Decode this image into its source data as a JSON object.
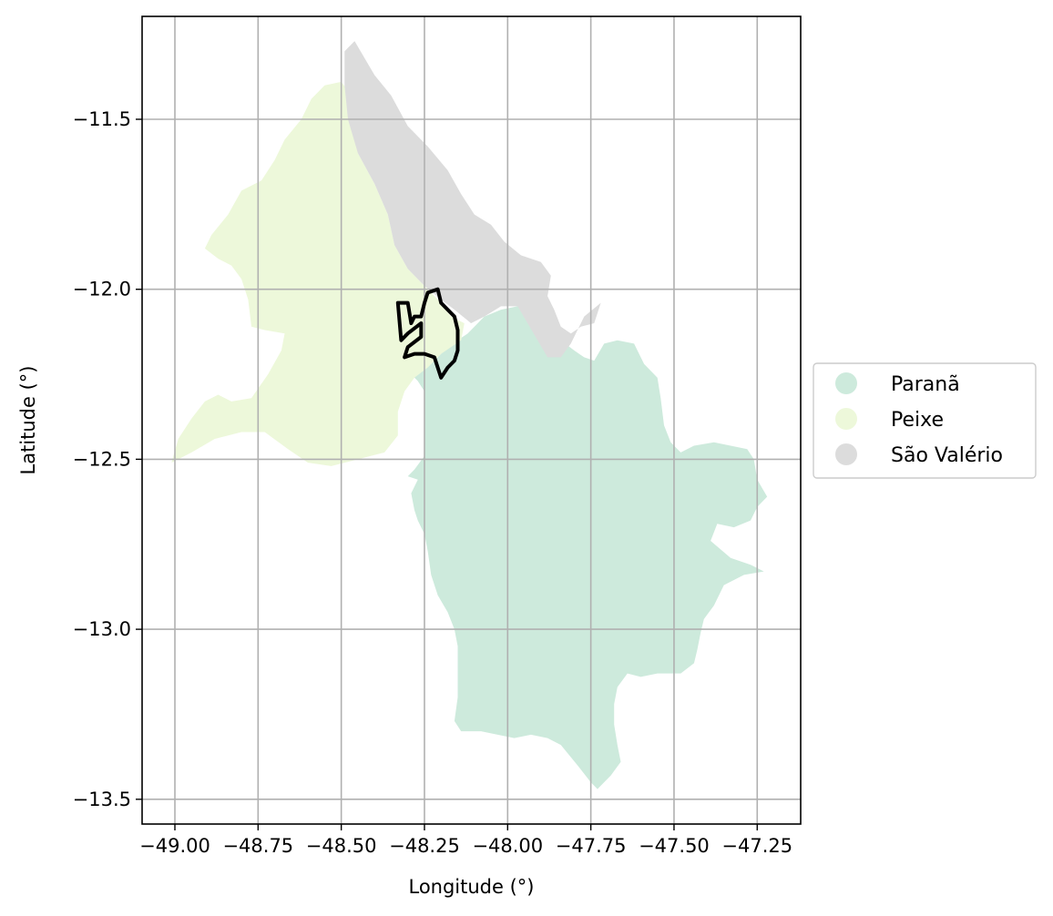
{
  "map": {
    "xlabel": "Longitude (°)",
    "ylabel": "Latitude (°)",
    "x_ticks": [
      {
        "value": -49.0,
        "label": "−49.00"
      },
      {
        "value": -48.75,
        "label": "−48.75"
      },
      {
        "value": -48.5,
        "label": "−48.50"
      },
      {
        "value": -48.25,
        "label": "−48.25"
      },
      {
        "value": -48.0,
        "label": "−48.00"
      },
      {
        "value": -47.75,
        "label": "−47.75"
      },
      {
        "value": -47.5,
        "label": "−47.50"
      },
      {
        "value": -47.25,
        "label": "−47.25"
      }
    ],
    "y_ticks": [
      {
        "value": -11.5,
        "label": "−11.5"
      },
      {
        "value": -12.0,
        "label": "−12.0"
      },
      {
        "value": -12.5,
        "label": "−12.5"
      },
      {
        "value": -13.0,
        "label": "−13.0"
      },
      {
        "value": -13.5,
        "label": "−13.5"
      }
    ],
    "xlim": [
      -49.1,
      -47.13
    ],
    "ylim": [
      -13.58,
      -11.2
    ],
    "grid": true,
    "legend_position": "right",
    "regions": [
      {
        "name": "Paranã",
        "color": "#cdeadc",
        "coords": [
          [
            -48.23,
            -12.22
          ],
          [
            -48.18,
            -12.17
          ],
          [
            -48.12,
            -12.13
          ],
          [
            -48.07,
            -12.08
          ],
          [
            -48.02,
            -12.06
          ],
          [
            -47.97,
            -12.05
          ],
          [
            -47.92,
            -12.07
          ],
          [
            -47.88,
            -12.1
          ],
          [
            -47.84,
            -12.15
          ],
          [
            -47.8,
            -12.18
          ],
          [
            -47.77,
            -12.2
          ],
          [
            -47.74,
            -12.21
          ],
          [
            -47.71,
            -12.16
          ],
          [
            -47.67,
            -12.15
          ],
          [
            -47.62,
            -12.16
          ],
          [
            -47.59,
            -12.22
          ],
          [
            -47.55,
            -12.26
          ],
          [
            -47.54,
            -12.32
          ],
          [
            -47.53,
            -12.4
          ],
          [
            -47.51,
            -12.45
          ],
          [
            -47.48,
            -12.48
          ],
          [
            -47.44,
            -12.46
          ],
          [
            -47.38,
            -12.45
          ],
          [
            -47.33,
            -12.46
          ],
          [
            -47.28,
            -12.47
          ],
          [
            -47.26,
            -12.5
          ],
          [
            -47.25,
            -12.56
          ],
          [
            -47.22,
            -12.61
          ],
          [
            -47.25,
            -12.64
          ],
          [
            -47.27,
            -12.68
          ],
          [
            -47.32,
            -12.7
          ],
          [
            -47.37,
            -12.69
          ],
          [
            -47.39,
            -12.74
          ],
          [
            -47.33,
            -12.79
          ],
          [
            -47.27,
            -12.81
          ],
          [
            -47.23,
            -12.83
          ],
          [
            -47.29,
            -12.84
          ],
          [
            -47.35,
            -12.87
          ],
          [
            -47.38,
            -12.93
          ],
          [
            -47.41,
            -12.97
          ],
          [
            -47.42,
            -13.01
          ],
          [
            -47.43,
            -13.06
          ],
          [
            -47.44,
            -13.1
          ],
          [
            -47.48,
            -13.13
          ],
          [
            -47.55,
            -13.13
          ],
          [
            -47.6,
            -13.14
          ],
          [
            -47.64,
            -13.13
          ],
          [
            -47.67,
            -13.17
          ],
          [
            -47.68,
            -13.22
          ],
          [
            -47.68,
            -13.28
          ],
          [
            -47.67,
            -13.34
          ],
          [
            -47.66,
            -13.39
          ],
          [
            -47.69,
            -13.43
          ],
          [
            -47.73,
            -13.47
          ],
          [
            -47.75,
            -13.45
          ],
          [
            -47.79,
            -13.4
          ],
          [
            -47.84,
            -13.34
          ],
          [
            -47.88,
            -13.32
          ],
          [
            -47.93,
            -13.31
          ],
          [
            -47.98,
            -13.32
          ],
          [
            -48.03,
            -13.31
          ],
          [
            -48.08,
            -13.3
          ],
          [
            -48.14,
            -13.3
          ],
          [
            -48.16,
            -13.27
          ],
          [
            -48.15,
            -13.2
          ],
          [
            -48.15,
            -13.12
          ],
          [
            -48.15,
            -13.05
          ],
          [
            -48.16,
            -13.0
          ],
          [
            -48.18,
            -12.95
          ],
          [
            -48.21,
            -12.9
          ],
          [
            -48.23,
            -12.84
          ],
          [
            -48.24,
            -12.77
          ],
          [
            -48.25,
            -12.72
          ],
          [
            -48.27,
            -12.68
          ],
          [
            -48.28,
            -12.65
          ],
          [
            -48.29,
            -12.6
          ],
          [
            -48.27,
            -12.56
          ],
          [
            -48.3,
            -12.55
          ],
          [
            -48.28,
            -12.53
          ],
          [
            -48.25,
            -12.49
          ],
          [
            -48.25,
            -12.42
          ],
          [
            -48.25,
            -12.35
          ],
          [
            -48.25,
            -12.3
          ],
          [
            -48.27,
            -12.27
          ],
          [
            -48.29,
            -12.25
          ],
          [
            -48.3,
            -12.23
          ]
        ]
      },
      {
        "name": "Peixe",
        "color": "#edf8da",
        "coords": [
          [
            -48.45,
            -11.52
          ],
          [
            -48.45,
            -11.6
          ],
          [
            -48.4,
            -11.69
          ],
          [
            -48.36,
            -11.78
          ],
          [
            -48.34,
            -11.87
          ],
          [
            -48.3,
            -11.94
          ],
          [
            -48.25,
            -11.99
          ],
          [
            -48.21,
            -12.03
          ],
          [
            -48.17,
            -12.08
          ],
          [
            -48.13,
            -12.1
          ],
          [
            -48.14,
            -12.15
          ],
          [
            -48.2,
            -12.19
          ],
          [
            -48.24,
            -12.23
          ],
          [
            -48.28,
            -12.26
          ],
          [
            -48.31,
            -12.3
          ],
          [
            -48.33,
            -12.36
          ],
          [
            -48.33,
            -12.43
          ],
          [
            -48.37,
            -12.48
          ],
          [
            -48.45,
            -12.5
          ],
          [
            -48.53,
            -12.52
          ],
          [
            -48.6,
            -12.51
          ],
          [
            -48.66,
            -12.47
          ],
          [
            -48.73,
            -12.42
          ],
          [
            -48.8,
            -12.42
          ],
          [
            -48.88,
            -12.44
          ],
          [
            -48.95,
            -12.48
          ],
          [
            -49.01,
            -12.51
          ],
          [
            -48.99,
            -12.44
          ],
          [
            -48.95,
            -12.38
          ],
          [
            -48.91,
            -12.33
          ],
          [
            -48.87,
            -12.31
          ],
          [
            -48.83,
            -12.33
          ],
          [
            -48.77,
            -12.32
          ],
          [
            -48.72,
            -12.25
          ],
          [
            -48.68,
            -12.18
          ],
          [
            -48.67,
            -12.13
          ],
          [
            -48.73,
            -12.12
          ],
          [
            -48.77,
            -12.11
          ],
          [
            -48.78,
            -12.03
          ],
          [
            -48.8,
            -11.97
          ],
          [
            -48.83,
            -11.93
          ],
          [
            -48.87,
            -11.91
          ],
          [
            -48.91,
            -11.88
          ],
          [
            -48.89,
            -11.84
          ],
          [
            -48.84,
            -11.78
          ],
          [
            -48.8,
            -11.71
          ],
          [
            -48.74,
            -11.68
          ],
          [
            -48.7,
            -11.62
          ],
          [
            -48.67,
            -11.56
          ],
          [
            -48.62,
            -11.5
          ],
          [
            -48.59,
            -11.44
          ],
          [
            -48.55,
            -11.4
          ],
          [
            -48.5,
            -11.39
          ],
          [
            -48.46,
            -11.44
          ]
        ]
      },
      {
        "name": "São Valério",
        "color": "#dcdcdc",
        "coords": [
          [
            -48.49,
            -11.3
          ],
          [
            -48.46,
            -11.27
          ],
          [
            -48.43,
            -11.32
          ],
          [
            -48.4,
            -11.37
          ],
          [
            -48.35,
            -11.43
          ],
          [
            -48.3,
            -11.52
          ],
          [
            -48.24,
            -11.58
          ],
          [
            -48.18,
            -11.65
          ],
          [
            -48.14,
            -11.72
          ],
          [
            -48.1,
            -11.78
          ],
          [
            -48.05,
            -11.81
          ],
          [
            -48.01,
            -11.86
          ],
          [
            -47.96,
            -11.9
          ],
          [
            -47.9,
            -11.92
          ],
          [
            -47.87,
            -11.96
          ],
          [
            -47.88,
            -12.02
          ],
          [
            -47.86,
            -12.06
          ],
          [
            -47.84,
            -12.11
          ],
          [
            -47.81,
            -12.13
          ],
          [
            -47.78,
            -12.11
          ],
          [
            -47.74,
            -12.1
          ],
          [
            -47.72,
            -12.04
          ],
          [
            -47.77,
            -12.08
          ],
          [
            -47.81,
            -12.16
          ],
          [
            -47.84,
            -12.2
          ],
          [
            -47.88,
            -12.2
          ],
          [
            -47.91,
            -12.15
          ],
          [
            -47.94,
            -12.1
          ],
          [
            -47.97,
            -12.05
          ],
          [
            -48.02,
            -12.05
          ],
          [
            -48.07,
            -12.08
          ],
          [
            -48.11,
            -12.1
          ],
          [
            -48.16,
            -12.06
          ],
          [
            -48.2,
            -12.03
          ],
          [
            -48.25,
            -11.99
          ],
          [
            -48.3,
            -11.94
          ],
          [
            -48.34,
            -11.87
          ],
          [
            -48.36,
            -11.78
          ],
          [
            -48.4,
            -11.69
          ],
          [
            -48.45,
            -11.6
          ],
          [
            -48.48,
            -11.5
          ],
          [
            -48.49,
            -11.4
          ]
        ]
      }
    ],
    "outline": {
      "color": "#000000",
      "coords": [
        [
          -48.33,
          -12.04
        ],
        [
          -48.3,
          -12.04
        ],
        [
          -48.29,
          -12.1
        ],
        [
          -48.28,
          -12.08
        ],
        [
          -48.26,
          -12.08
        ],
        [
          -48.25,
          -12.04
        ],
        [
          -48.24,
          -12.01
        ],
        [
          -48.21,
          -12.0
        ],
        [
          -48.2,
          -12.04
        ],
        [
          -48.18,
          -12.06
        ],
        [
          -48.16,
          -12.08
        ],
        [
          -48.15,
          -12.12
        ],
        [
          -48.15,
          -12.18
        ],
        [
          -48.16,
          -12.21
        ],
        [
          -48.18,
          -12.23
        ],
        [
          -48.2,
          -12.26
        ],
        [
          -48.22,
          -12.2
        ],
        [
          -48.25,
          -12.19
        ],
        [
          -48.28,
          -12.19
        ],
        [
          -48.31,
          -12.2
        ],
        [
          -48.3,
          -12.17
        ],
        [
          -48.26,
          -12.14
        ],
        [
          -48.26,
          -12.1
        ],
        [
          -48.3,
          -12.13
        ],
        [
          -48.32,
          -12.15
        ]
      ]
    },
    "legend": [
      {
        "label": "Paranã",
        "color": "#cdeadc"
      },
      {
        "label": "Peixe",
        "color": "#edf8da"
      },
      {
        "label": "São Valério",
        "color": "#dcdcdc"
      }
    ]
  }
}
